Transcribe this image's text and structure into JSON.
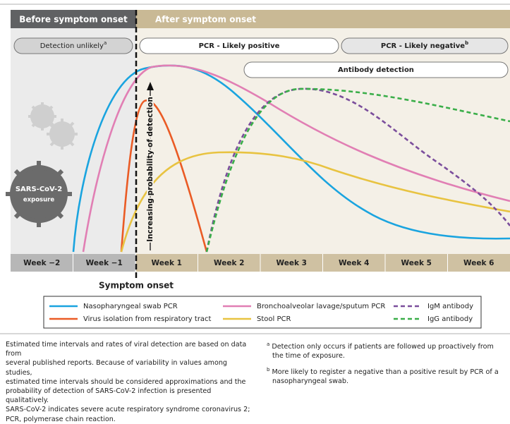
{
  "header": {
    "before": "Before symptom onset",
    "after": "After symptom onset"
  },
  "phases": [
    {
      "label": "Detection unlikely",
      "note": "a"
    },
    {
      "label": "PCR - Likely positive"
    },
    {
      "label": "PCR - Likely negative",
      "note": "b"
    },
    {
      "label": "Antibody detection"
    }
  ],
  "exposure": {
    "line1": "SARS-CoV-2",
    "line2": "exposure"
  },
  "axis_label": "Increasing probability of detection",
  "weeks": [
    "Week −2",
    "Week −1",
    "Week 1",
    "Week 2",
    "Week 3",
    "Week 4",
    "Week 5",
    "Week 6"
  ],
  "onset": "Symptom onset",
  "legend": [
    "Nasopharyngeal swab PCR",
    "Virus isolation from respiratory tract",
    "Bronchoalveolar lavage/sputum PCR",
    "Stool PCR",
    "IgM antibody",
    "IgG antibody"
  ],
  "notes": {
    "left": [
      "Estimated time intervals and rates of viral detection are based on data from",
      "several published reports. Because of variability in values among studies,",
      "estimated time intervals should be considered approximations and the",
      "probability of detection of SARS-CoV-2 infection is presented qualitatively.",
      "SARS-CoV-2 indicates severe acute respiratory syndrome coronavirus 2;",
      "PCR, polymerase chain reaction."
    ],
    "a": {
      "mark": "a",
      "text": "Detection only occurs if patients are followed up proactively from the time of exposure."
    },
    "b": {
      "mark": "b",
      "text": "More likely to register a negative than a positive result by PCR of a nasopharyngeal swab."
    }
  }
}
